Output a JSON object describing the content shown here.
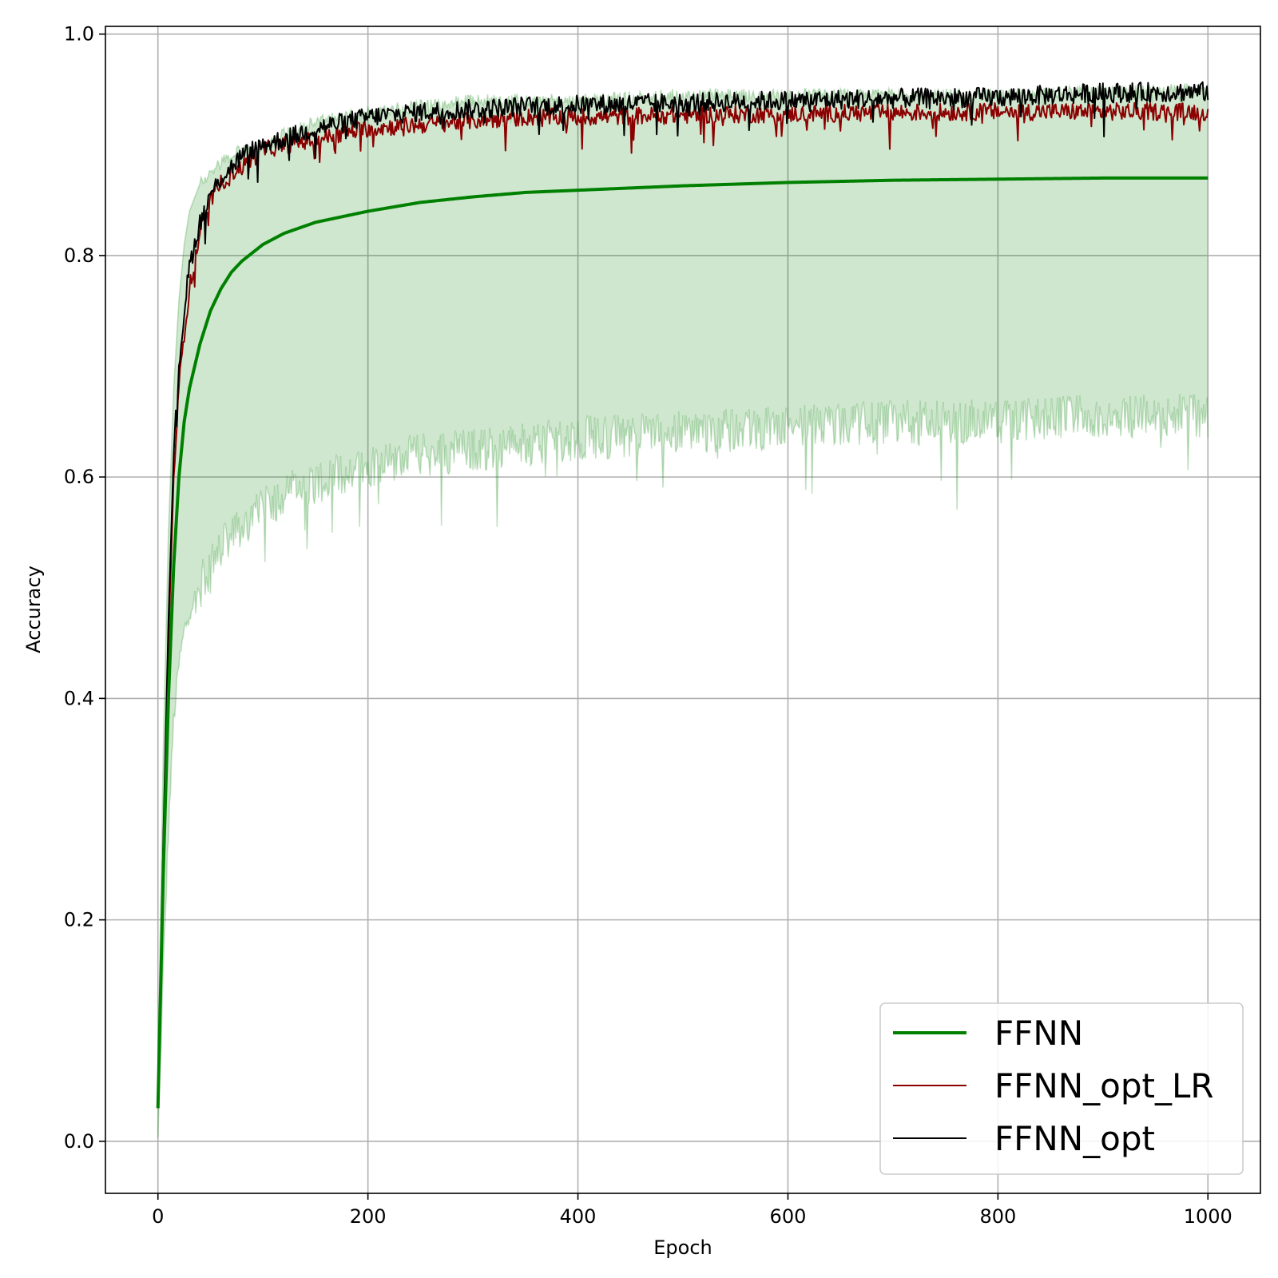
{
  "chart_data": {
    "type": "line",
    "title": "",
    "xlabel": "Epoch",
    "ylabel": "Accuracy",
    "xlim": [
      -50,
      1050
    ],
    "ylim": [
      -0.047,
      1.007
    ],
    "xticks": [
      "0",
      "200",
      "400",
      "600",
      "800",
      "1000"
    ],
    "yticks": [
      "0.0",
      "0.2",
      "0.4",
      "0.6",
      "0.8",
      "1.0"
    ],
    "grid": true,
    "legend_position": "lower right",
    "series": [
      {
        "name": "FFNN",
        "color": "#008000",
        "style": "thick",
        "x": [
          0,
          5,
          10,
          15,
          20,
          25,
          30,
          40,
          50,
          60,
          70,
          80,
          100,
          120,
          150,
          200,
          250,
          300,
          350,
          400,
          500,
          600,
          700,
          800,
          900,
          1000
        ],
        "y": [
          0.03,
          0.24,
          0.4,
          0.52,
          0.6,
          0.65,
          0.68,
          0.72,
          0.75,
          0.77,
          0.785,
          0.795,
          0.81,
          0.82,
          0.83,
          0.84,
          0.848,
          0.853,
          0.857,
          0.859,
          0.863,
          0.866,
          0.868,
          0.869,
          0.87,
          0.87
        ],
        "band_low": [
          0.0,
          0.15,
          0.28,
          0.38,
          0.43,
          0.46,
          0.48,
          0.5,
          0.52,
          0.535,
          0.545,
          0.555,
          0.57,
          0.585,
          0.595,
          0.61,
          0.62,
          0.625,
          0.63,
          0.635,
          0.64,
          0.645,
          0.65,
          0.65,
          0.655,
          0.655
        ],
        "band_high": [
          0.06,
          0.35,
          0.55,
          0.68,
          0.76,
          0.81,
          0.84,
          0.865,
          0.875,
          0.885,
          0.89,
          0.895,
          0.9,
          0.91,
          0.92,
          0.93,
          0.935,
          0.94,
          0.94,
          0.94,
          0.945,
          0.945,
          0.945,
          0.945,
          0.948,
          0.95
        ]
      },
      {
        "name": "FFNN_opt_LR",
        "color": "#8b0000",
        "style": "noisy",
        "noise": 0.008,
        "x": [
          0,
          5,
          10,
          15,
          20,
          25,
          30,
          40,
          50,
          60,
          70,
          80,
          100,
          120,
          150,
          200,
          250,
          300,
          350,
          400,
          500,
          600,
          700,
          800,
          900,
          1000
        ],
        "y": [
          0.03,
          0.26,
          0.45,
          0.6,
          0.68,
          0.73,
          0.77,
          0.82,
          0.85,
          0.865,
          0.875,
          0.88,
          0.895,
          0.9,
          0.905,
          0.915,
          0.918,
          0.922,
          0.925,
          0.925,
          0.927,
          0.928,
          0.929,
          0.93,
          0.93,
          0.93
        ]
      },
      {
        "name": "FFNN_opt",
        "color": "#000000",
        "style": "noisy",
        "noise": 0.009,
        "x": [
          0,
          5,
          10,
          15,
          20,
          25,
          30,
          40,
          50,
          60,
          70,
          80,
          100,
          120,
          150,
          200,
          250,
          300,
          350,
          400,
          500,
          600,
          700,
          800,
          900,
          1000
        ],
        "y": [
          0.03,
          0.27,
          0.47,
          0.62,
          0.7,
          0.75,
          0.79,
          0.83,
          0.855,
          0.87,
          0.88,
          0.89,
          0.9,
          0.905,
          0.915,
          0.925,
          0.93,
          0.932,
          0.935,
          0.936,
          0.938,
          0.94,
          0.942,
          0.943,
          0.947,
          0.948
        ]
      }
    ]
  }
}
